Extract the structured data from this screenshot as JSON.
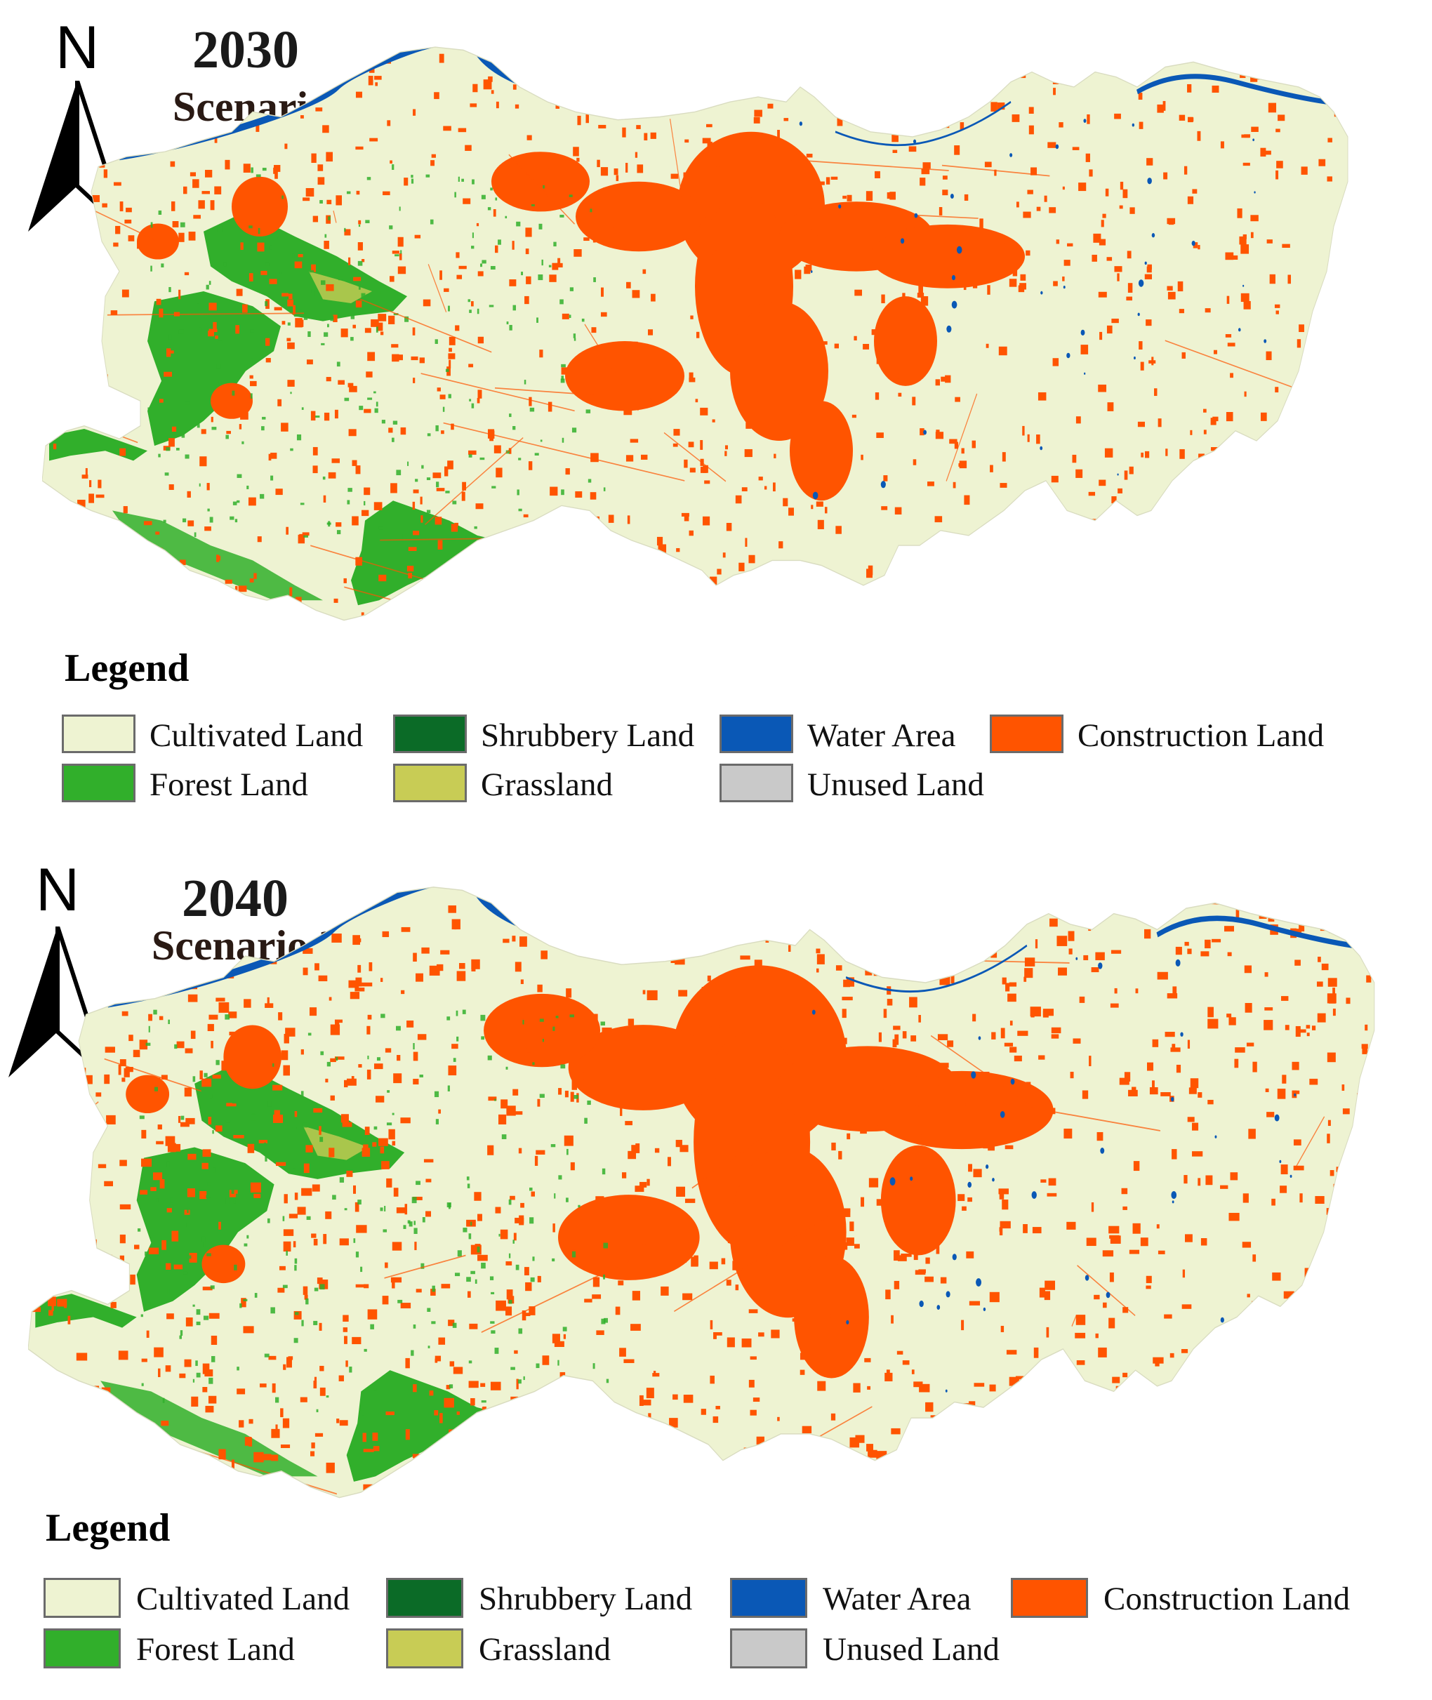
{
  "colors": {
    "cultivated": "#EEF3D2",
    "forest": "#31AF2B",
    "shrubbery": "#0B6B27",
    "grassland": "#C8CC55",
    "water": "#0A58B6",
    "unused": "#C9C9C9",
    "construction": "#FF5400"
  },
  "panels": [
    {
      "north_label": "N",
      "year": "2030",
      "scenario": "Scenario 3",
      "legend_title": "Legend",
      "legend": [
        {
          "label": "Cultivated Land",
          "color": "#EEF3D2"
        },
        {
          "label": "Shrubbery Land",
          "color": "#0B6B27"
        },
        {
          "label": "Water Area",
          "color": "#0A58B6"
        },
        {
          "label": "Construction Land",
          "color": "#FF5400"
        },
        {
          "label": "Forest Land",
          "color": "#31AF2B"
        },
        {
          "label": "Grassland",
          "color": "#C8CC55"
        },
        {
          "label": "Unused Land",
          "color": "#C9C9C9"
        }
      ]
    },
    {
      "north_label": "N",
      "year": "2040",
      "scenario": "Scenario 3",
      "legend_title": "Legend",
      "legend": [
        {
          "label": "Cultivated Land",
          "color": "#EEF3D2"
        },
        {
          "label": "Shrubbery Land",
          "color": "#0B6B27"
        },
        {
          "label": "Water Area",
          "color": "#0A58B6"
        },
        {
          "label": "Construction Land",
          "color": "#FF5400"
        },
        {
          "label": "Forest Land",
          "color": "#31AF2B"
        },
        {
          "label": "Grassland",
          "color": "#C8CC55"
        },
        {
          "label": "Unused Land",
          "color": "#C9C9C9"
        }
      ]
    }
  ]
}
